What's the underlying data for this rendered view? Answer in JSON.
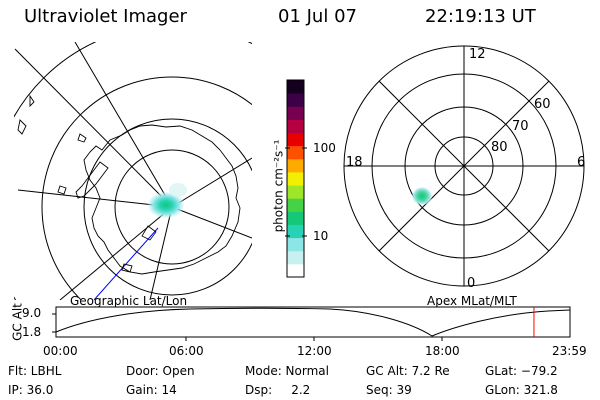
{
  "header": {
    "title": "Ultraviolet Imager",
    "date": "01 Jul 07",
    "time": "22:19:13 UT"
  },
  "geo_panel": {
    "label": "Geographic Lat/Lon"
  },
  "mag_panel": {
    "label": "Apex MLat/MLT",
    "mlt_labels": [
      "12",
      "18",
      "6",
      "0"
    ],
    "lat_labels": [
      "60",
      "70",
      "80"
    ]
  },
  "color_scale": {
    "unit": "photon cm⁻²s⁻¹",
    "tick_labels": [
      "100",
      "10"
    ],
    "colors": [
      "#ffffff",
      "#c8f0f0",
      "#8ce6e6",
      "#28d2b4",
      "#14c878",
      "#46d246",
      "#a0e628",
      "#f0f000",
      "#ffaa00",
      "#ff5000",
      "#e60000",
      "#b40040",
      "#780050",
      "#3c0046",
      "#14001e"
    ]
  },
  "altitude_plot": {
    "ylabel": "GC Alt",
    "y_ticks": [
      "9.0",
      "1.8"
    ],
    "x_ticks": [
      "00:00",
      "06:00",
      "12:00",
      "18:00",
      "23:59"
    ],
    "cursor_time_fraction": 0.9299,
    "cursor_color": "#ff0000"
  },
  "footer": {
    "row1": [
      "Flt: LBHL",
      "Door: Open",
      "Mode: Normal",
      "GC Alt: 7.2 Re",
      "GLat: −79.2"
    ],
    "row2": [
      "IP: 36.0",
      "Gain: 14",
      "Dsp:     2.2",
      "Seq: 39",
      "GLon: 321.8"
    ]
  }
}
